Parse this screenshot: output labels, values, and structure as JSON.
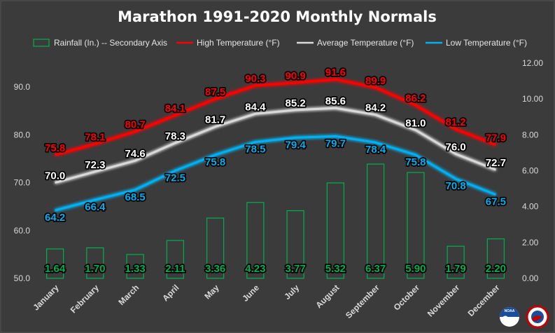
{
  "chart_data": {
    "type": "bar+line",
    "title": "Marathon 1991-2020 Monthly Normals",
    "categories": [
      "January",
      "February",
      "March",
      "April",
      "May",
      "June",
      "July",
      "August",
      "September",
      "October",
      "November",
      "December"
    ],
    "legend_position": "top",
    "legend": [
      {
        "key": "rain",
        "label": "Rainfall (In.) -- Secondary Axis",
        "color": "#00b050"
      },
      {
        "key": "high",
        "label": "High Temperature (°F)",
        "color": "#ff0000"
      },
      {
        "key": "avg",
        "label": "Average Temperature (°F)",
        "color": "#d9d9d9"
      },
      {
        "key": "low",
        "label": "Low Temperature (°F)",
        "color": "#00b0f0"
      }
    ],
    "series": [
      {
        "name": "High Temperature (°F)",
        "key": "high",
        "type": "line",
        "axis": "primary",
        "color": "#ff0000",
        "label_fill": "#ff0000",
        "values": [
          75.8,
          78.1,
          80.7,
          84.1,
          87.5,
          90.3,
          90.9,
          91.6,
          89.9,
          86.2,
          81.2,
          77.9
        ]
      },
      {
        "name": "Average Temperature (°F)",
        "key": "avg",
        "type": "line",
        "axis": "primary",
        "color": "#d9d9d9",
        "label_fill": "#ffffff",
        "values": [
          70.0,
          72.3,
          74.6,
          78.3,
          81.7,
          84.4,
          85.2,
          85.6,
          84.2,
          81.0,
          76.0,
          72.7
        ]
      },
      {
        "name": "Low Temperature (°F)",
        "key": "low",
        "type": "line",
        "axis": "primary",
        "color": "#00b0f0",
        "label_fill": "#00b0f0",
        "values": [
          64.2,
          66.4,
          68.5,
          72.5,
          75.8,
          78.5,
          79.4,
          79.7,
          78.4,
          75.8,
          70.8,
          67.5
        ]
      },
      {
        "name": "Rainfall (In.) -- Secondary Axis",
        "key": "rain",
        "type": "bar",
        "axis": "secondary",
        "color": "#00b050",
        "label_fill": "#00b050",
        "values": [
          1.64,
          1.7,
          1.33,
          2.11,
          3.36,
          4.23,
          3.77,
          5.32,
          6.37,
          5.9,
          1.79,
          2.2
        ]
      }
    ],
    "y_primary": {
      "min": 50,
      "max": 95,
      "ticks": [
        "50.0",
        "60.0",
        "70.0",
        "80.0",
        "90.0"
      ]
    },
    "y_secondary": {
      "min": 0,
      "max": 12,
      "ticks": [
        "0.00",
        "2.00",
        "4.00",
        "6.00",
        "8.00",
        "10.00",
        "12.00"
      ]
    },
    "grid": false
  },
  "logos": [
    {
      "name": "noaa-logo",
      "text": "NOAA"
    },
    {
      "name": "nws-logo",
      "text": "NATIONAL WEATHER SERVICE"
    }
  ]
}
